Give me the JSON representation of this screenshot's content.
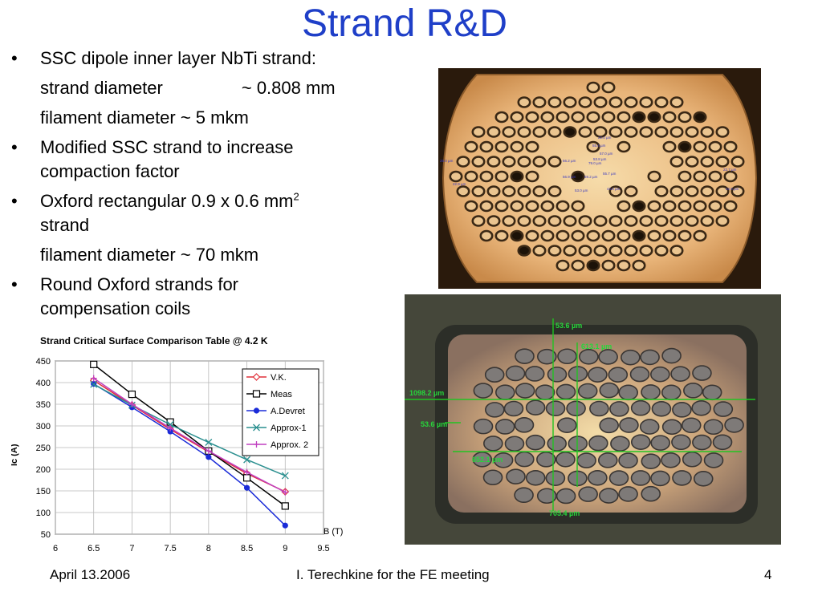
{
  "slide": {
    "title": "Strand R&D",
    "bullets": {
      "b1": "SSC dipole inner layer NbTi strand:",
      "b1_sub1_label": "strand diameter",
      "b1_sub1_value": "~ 0.808 mm",
      "b1_sub2": "filament diameter  ~ 5 mkm",
      "b2_line1": "Modified SSC strand to increase",
      "b2_line2": "compaction factor",
      "b3_line1": "Oxford rectangular 0.9 x 0.6 mm",
      "b3_sup": "2",
      "b3_line2": "strand",
      "b3_sub": "filament diameter ~ 70 mkm",
      "b4_line1": "Round Oxford strands for",
      "b4_line2": "compensation coils"
    },
    "photo1_labels": [
      "22.0 µm",
      "55.4 µm",
      "57.0 µm",
      "53.8 µm",
      "56.2 µm",
      "79.0 µm",
      "59.2 µm",
      "56.9 µm",
      "55.7 µm",
      "53.0 µm",
      "43.6 µm",
      "26.0 µm",
      "22.9 µm",
      "22.7 µm",
      "22.9 µm"
    ],
    "photo2_labels": {
      "top": "53.6 µm",
      "top2": "613.1 µm",
      "left": "1098.2 µm",
      "left2": "53.6 µm",
      "left3": "652.1 µm",
      "bottom": "705.4 µm"
    },
    "footer": {
      "date": "April 13.2006",
      "center": "I. Terechkine for the FE meeting",
      "page": "4"
    }
  },
  "colors": {
    "title": "#1f3fc8",
    "vk": "#e0303a",
    "meas": "#000000",
    "devret": "#1a2bd8",
    "approx1": "#2a8f8f",
    "approx2": "#c040c0"
  },
  "chart_data": {
    "type": "line",
    "title": "Strand Critical Surface Comparison Table @ 4.2 K",
    "xlabel": "B (T)",
    "ylabel": "Ic (A)",
    "xlim": [
      6,
      9.5
    ],
    "ylim": [
      50,
      450
    ],
    "xticks": [
      "6",
      "6.5",
      "7",
      "7.5",
      "8",
      "8.5",
      "9",
      "9.5"
    ],
    "yticks": [
      "450",
      "400",
      "350",
      "300",
      "250",
      "200",
      "150",
      "100",
      "50"
    ],
    "grid": true,
    "legend_position": "top-right",
    "series": [
      {
        "name": "V.K.",
        "marker": "diamond-open",
        "x": [
          6.5,
          7,
          7.5,
          8,
          8.5,
          9
        ],
        "y": [
          405,
          348,
          292,
          240,
          190,
          148
        ]
      },
      {
        "name": "Meas",
        "marker": "square-open",
        "x": [
          6.5,
          7,
          7.5,
          8,
          8.5,
          9
        ],
        "y": [
          442,
          373,
          309,
          242,
          180,
          115
        ]
      },
      {
        "name": "A.Devret",
        "marker": "circle-filled",
        "x": [
          6.5,
          7,
          7.5,
          8,
          8.5,
          9
        ],
        "y": [
          397,
          343,
          287,
          228,
          157,
          70
        ]
      },
      {
        "name": "Approx-1",
        "marker": "x",
        "x": [
          6.5,
          7,
          7.5,
          8,
          8.5,
          9
        ],
        "y": [
          396,
          348,
          303,
          262,
          222,
          185
        ]
      },
      {
        "name": "Approx. 2",
        "marker": "plus",
        "x": [
          6.5,
          7,
          7.5,
          8,
          8.5,
          9
        ],
        "y": [
          410,
          350,
          295,
          242,
          193,
          147
        ]
      }
    ]
  }
}
